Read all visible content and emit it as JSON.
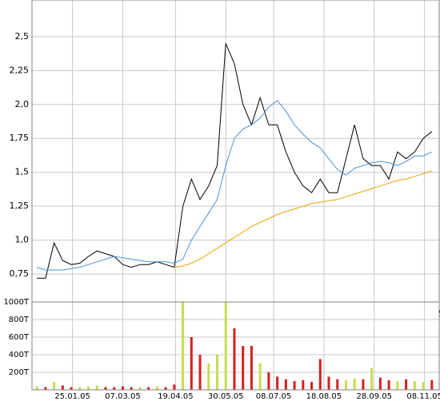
{
  "chart_data": [
    {
      "type": "line",
      "x": [
        "27.12.04",
        "03.01.05",
        "10.01.05",
        "17.01.05",
        "24.01.05",
        "31.01.05",
        "07.02.05",
        "14.02.05",
        "21.02.05",
        "28.02.05",
        "07.03.05",
        "14.03.05",
        "21.03.05",
        "28.03.05",
        "04.04.05",
        "11.04.05",
        "18.04.05",
        "25.04.05",
        "02.05.05",
        "09.05.05",
        "16.05.05",
        "23.05.05",
        "30.05.05",
        "06.06.05",
        "13.06.05",
        "20.06.05",
        "27.06.05",
        "04.07.05",
        "11.07.05",
        "18.07.05",
        "25.07.05",
        "01.08.05",
        "08.08.05",
        "15.08.05",
        "22.08.05",
        "29.08.05",
        "05.09.05",
        "12.09.05",
        "19.09.05",
        "26.09.05",
        "03.10.05",
        "10.10.05",
        "17.10.05",
        "24.10.05",
        "31.10.05",
        "07.11.05",
        "14.11.05"
      ],
      "series": [
        {
          "color": "#000000",
          "values": [
            0.72,
            0.72,
            0.98,
            0.85,
            0.82,
            0.83,
            0.88,
            0.92,
            0.9,
            0.88,
            0.82,
            0.8,
            0.82,
            0.82,
            0.84,
            0.82,
            0.8,
            1.25,
            1.45,
            1.3,
            1.4,
            1.55,
            2.45,
            2.3,
            2.0,
            1.85,
            2.05,
            1.85,
            1.85,
            1.65,
            1.5,
            1.4,
            1.35,
            1.45,
            1.35,
            1.35,
            1.6,
            1.85,
            1.6,
            1.55,
            1.55,
            1.45,
            1.65,
            1.6,
            1.65,
            1.75,
            1.8
          ]
        },
        {
          "color": "#4a90d9",
          "values": [
            0.8,
            0.78,
            0.78,
            0.78,
            0.79,
            0.8,
            0.82,
            0.84,
            0.86,
            0.88,
            0.87,
            0.86,
            0.85,
            0.84,
            0.84,
            0.84,
            0.83,
            0.86,
            1.0,
            1.1,
            1.2,
            1.3,
            1.55,
            1.75,
            1.82,
            1.85,
            1.9,
            1.98,
            2.03,
            1.95,
            1.85,
            1.78,
            1.72,
            1.68,
            1.6,
            1.52,
            1.48,
            1.53,
            1.55,
            1.57,
            1.58,
            1.57,
            1.55,
            1.58,
            1.62,
            1.62,
            1.65
          ]
        },
        {
          "color": "#f0a000",
          "values": [
            null,
            null,
            null,
            null,
            null,
            null,
            null,
            null,
            null,
            null,
            null,
            null,
            null,
            null,
            null,
            null,
            0.8,
            0.81,
            0.83,
            0.86,
            0.9,
            0.94,
            0.98,
            1.02,
            1.06,
            1.1,
            1.13,
            1.16,
            1.19,
            1.21,
            1.23,
            1.25,
            1.27,
            1.28,
            1.29,
            1.3,
            1.32,
            1.34,
            1.36,
            1.38,
            1.4,
            1.42,
            1.44,
            1.45,
            1.47,
            1.49,
            1.51
          ]
        }
      ],
      "xlim": [
        "23.12.04",
        "20.11.05"
      ],
      "xticks": [
        "25.01.05",
        "07.03.05",
        "19.04.05",
        "30.05.05",
        "08.07.05",
        "18.08.05",
        "28.09.05",
        "08.11.05"
      ],
      "ylim": [
        0.515,
        2.77
      ],
      "yticks": [
        {
          "value": 0.75,
          "label": "0,75"
        },
        {
          "value": 1.0,
          "label": "1,0"
        },
        {
          "value": 1.25,
          "label": "1,25"
        },
        {
          "value": 1.5,
          "label": "1,5"
        },
        {
          "value": 1.75,
          "label": "1,75"
        },
        {
          "value": 2.0,
          "label": "2,0"
        },
        {
          "value": 2.25,
          "label": "2,25"
        },
        {
          "value": 2.5,
          "label": "2,5"
        }
      ],
      "grid": true
    },
    {
      "type": "bar",
      "x": [
        "27.12.04",
        "03.01.05",
        "10.01.05",
        "17.01.05",
        "24.01.05",
        "31.01.05",
        "07.02.05",
        "14.02.05",
        "21.02.05",
        "28.02.05",
        "07.03.05",
        "14.03.05",
        "21.03.05",
        "28.03.05",
        "04.04.05",
        "11.04.05",
        "18.04.05",
        "25.04.05",
        "02.05.05",
        "09.05.05",
        "16.05.05",
        "23.05.05",
        "30.05.05",
        "06.06.05",
        "13.06.05",
        "20.06.05",
        "27.06.05",
        "04.07.05",
        "11.07.05",
        "18.07.05",
        "25.07.05",
        "01.08.05",
        "08.08.05",
        "15.08.05",
        "22.08.05",
        "29.08.05",
        "05.09.05",
        "12.09.05",
        "19.09.05",
        "26.09.05",
        "03.10.05",
        "10.10.05",
        "17.10.05",
        "24.10.05",
        "31.10.05",
        "07.11.05",
        "14.11.05"
      ],
      "values": [
        40,
        30,
        90,
        50,
        30,
        30,
        40,
        50,
        30,
        30,
        40,
        30,
        30,
        30,
        40,
        30,
        60,
        1000,
        600,
        400,
        300,
        400,
        1000,
        700,
        500,
        500,
        300,
        200,
        150,
        120,
        100,
        110,
        90,
        350,
        150,
        120,
        110,
        130,
        120,
        250,
        140,
        110,
        100,
        120,
        100,
        90,
        110
      ],
      "colors": [
        "#c8dc50",
        "#d42020",
        "#c8dc50",
        "#d42020",
        "#d42020",
        "#c8dc50",
        "#c8dc50",
        "#c8dc50",
        "#d42020",
        "#d42020",
        "#d42020",
        "#d42020",
        "#c8dc50",
        "#d42020",
        "#c8dc50",
        "#d42020",
        "#d42020",
        "#c8dc50",
        "#d42020",
        "#d42020",
        "#c8dc50",
        "#c8dc50",
        "#c8dc50",
        "#d42020",
        "#d42020",
        "#d42020",
        "#c8dc50",
        "#d42020",
        "#d42020",
        "#d42020",
        "#d42020",
        "#d42020",
        "#d42020",
        "#d42020",
        "#d42020",
        "#d42020",
        "#c8dc50",
        "#c8dc50",
        "#d42020",
        "#c8dc50",
        "#d42020",
        "#d42020",
        "#c8dc50",
        "#d42020",
        "#c8dc50",
        "#c8dc50",
        "#d42020"
      ],
      "xlim": [
        "23.12.04",
        "20.11.05"
      ],
      "xticks": [
        "25.01.05",
        "07.03.05",
        "19.04.05",
        "30.05.05",
        "08.07.05",
        "18.08.05",
        "28.09.05",
        "08.11.05"
      ],
      "ylim": [
        0,
        1000
      ],
      "yticks": [
        {
          "value": 200,
          "label": "200T"
        },
        {
          "value": 400,
          "label": "400T"
        },
        {
          "value": 600,
          "label": "600T"
        },
        {
          "value": 800,
          "label": "800T"
        },
        {
          "value": 1000,
          "label": "1000T"
        }
      ],
      "grid": true
    }
  ]
}
